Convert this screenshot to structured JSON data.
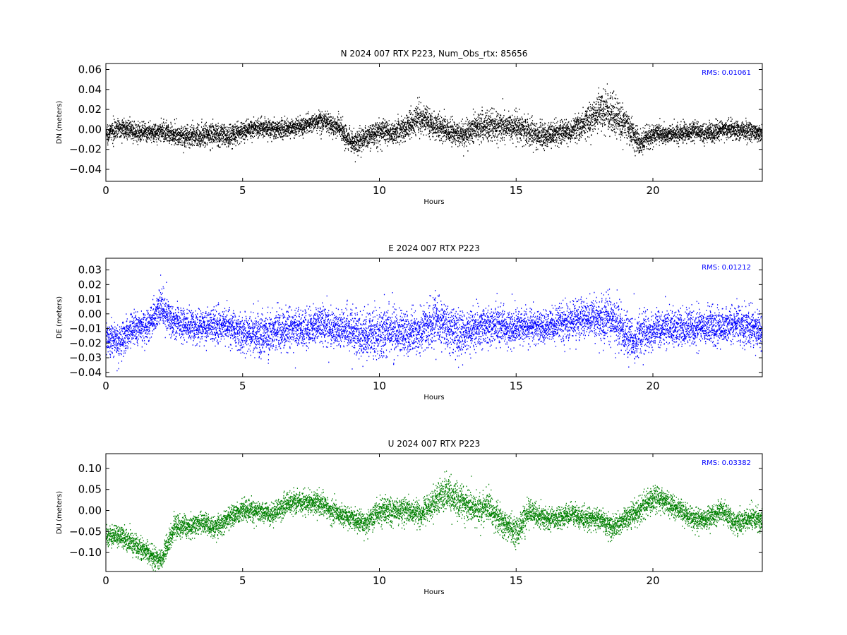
{
  "chart_data": [
    {
      "type": "scatter",
      "title": "N 2024 007 RTX  P223, Num_Obs_rtx: 85656",
      "xlabel": "Hours",
      "ylabel": "DN (meters)",
      "xlim": [
        0,
        24
      ],
      "ylim": [
        -0.052,
        0.066
      ],
      "xticks": [
        0,
        5,
        10,
        15,
        20
      ],
      "yticks": [
        -0.04,
        -0.02,
        0.0,
        0.02,
        0.04,
        0.06
      ],
      "ytick_labels": [
        "−0.04",
        "−0.02",
        "0.00",
        "0.02",
        "0.04",
        "0.06"
      ],
      "rms_label": "RMS:  0.01061",
      "rms_color": "#0000ff",
      "series": [
        {
          "color": "#000000",
          "x": [
            0,
            0.5,
            1,
            1.5,
            2,
            2.5,
            3,
            3.5,
            4,
            4.5,
            5,
            5.5,
            6,
            6.5,
            7,
            7.5,
            8,
            8.5,
            9,
            9.5,
            10,
            10.5,
            11,
            11.5,
            12,
            12.5,
            13,
            13.5,
            14,
            14.5,
            15,
            15.5,
            16,
            16.5,
            17,
            17.5,
            18,
            18.5,
            19,
            19.5,
            20,
            20.5,
            21,
            21.5,
            22,
            22.5,
            23,
            23.5,
            24
          ],
          "mean": [
            -0.005,
            0.002,
            -0.002,
            -0.004,
            -0.002,
            -0.005,
            -0.008,
            -0.006,
            -0.004,
            -0.007,
            -0.002,
            0.002,
            0.001,
            0.0,
            0.002,
            0.006,
            0.008,
            0.002,
            -0.014,
            -0.008,
            -0.002,
            -0.004,
            0.002,
            0.012,
            0.004,
            -0.002,
            -0.006,
            0.002,
            0.004,
            0.003,
            0.004,
            -0.003,
            -0.008,
            -0.004,
            -0.002,
            0.006,
            0.018,
            0.016,
            0.004,
            -0.014,
            -0.004,
            -0.006,
            -0.004,
            -0.002,
            -0.004,
            -0.001,
            -0.001,
            -0.002,
            -0.004
          ],
          "spread": [
            0.009,
            0.009,
            0.009,
            0.009,
            0.009,
            0.01,
            0.011,
            0.012,
            0.012,
            0.011,
            0.01,
            0.009,
            0.009,
            0.009,
            0.009,
            0.01,
            0.011,
            0.011,
            0.012,
            0.012,
            0.011,
            0.011,
            0.013,
            0.015,
            0.013,
            0.012,
            0.013,
            0.014,
            0.015,
            0.015,
            0.014,
            0.013,
            0.013,
            0.012,
            0.012,
            0.014,
            0.018,
            0.018,
            0.016,
            0.013,
            0.01,
            0.009,
            0.009,
            0.009,
            0.009,
            0.009,
            0.009,
            0.009,
            0.009
          ]
        }
      ]
    },
    {
      "type": "scatter",
      "title": "E 2024 007 RTX  P223",
      "xlabel": "Hours",
      "ylabel": "DE (meters)",
      "xlim": [
        0,
        24
      ],
      "ylim": [
        -0.043,
        0.038
      ],
      "xticks": [
        0,
        5,
        10,
        15,
        20
      ],
      "yticks": [
        -0.04,
        -0.03,
        -0.02,
        -0.01,
        0.0,
        0.01,
        0.02,
        0.03
      ],
      "ytick_labels": [
        "−0.04",
        "−0.03",
        "−0.02",
        "−0.01",
        "0.00",
        "0.01",
        "0.02",
        "0.03"
      ],
      "rms_label": "RMS:  0.01212",
      "rms_color": "#0000ff",
      "series": [
        {
          "color": "#0000ff",
          "x": [
            0,
            0.5,
            1,
            1.5,
            2,
            2.5,
            3,
            3.5,
            4,
            4.5,
            5,
            5.5,
            6,
            6.5,
            7,
            7.5,
            8,
            8.5,
            9,
            9.5,
            10,
            10.5,
            11,
            11.5,
            12,
            12.5,
            13,
            13.5,
            14,
            14.5,
            15,
            15.5,
            16,
            16.5,
            17,
            17.5,
            18,
            18.5,
            19,
            19.5,
            20,
            20.5,
            21,
            21.5,
            22,
            22.5,
            23,
            23.5,
            24
          ],
          "mean": [
            -0.016,
            -0.018,
            -0.01,
            -0.008,
            0.004,
            -0.006,
            -0.008,
            -0.009,
            -0.008,
            -0.009,
            -0.012,
            -0.014,
            -0.012,
            -0.01,
            -0.01,
            -0.009,
            -0.009,
            -0.01,
            -0.012,
            -0.014,
            -0.013,
            -0.012,
            -0.014,
            -0.012,
            -0.004,
            -0.01,
            -0.014,
            -0.01,
            -0.008,
            -0.009,
            -0.009,
            -0.008,
            -0.01,
            -0.007,
            -0.005,
            -0.004,
            -0.003,
            -0.004,
            -0.013,
            -0.016,
            -0.012,
            -0.009,
            -0.01,
            -0.01,
            -0.009,
            -0.01,
            -0.006,
            -0.009,
            -0.012
          ],
          "spread": [
            0.012,
            0.012,
            0.011,
            0.011,
            0.012,
            0.011,
            0.011,
            0.011,
            0.011,
            0.012,
            0.013,
            0.015,
            0.014,
            0.013,
            0.012,
            0.012,
            0.012,
            0.012,
            0.014,
            0.016,
            0.016,
            0.015,
            0.015,
            0.015,
            0.016,
            0.015,
            0.015,
            0.014,
            0.013,
            0.013,
            0.012,
            0.011,
            0.011,
            0.012,
            0.012,
            0.013,
            0.014,
            0.015,
            0.016,
            0.015,
            0.013,
            0.012,
            0.012,
            0.012,
            0.012,
            0.012,
            0.012,
            0.012,
            0.012
          ]
        }
      ]
    },
    {
      "type": "scatter",
      "title": "U 2024 007 RTX  P223",
      "xlabel": "Hours",
      "ylabel": "DU (meters)",
      "xlim": [
        0,
        24
      ],
      "ylim": [
        -0.145,
        0.135
      ],
      "xticks": [
        0,
        5,
        10,
        15,
        20
      ],
      "yticks": [
        -0.1,
        -0.05,
        0.0,
        0.05,
        0.1
      ],
      "ytick_labels": [
        "−0.10",
        "−0.05",
        "0.00",
        "0.05",
        "0.10"
      ],
      "rms_label": "RMS:  0.03382",
      "rms_color": "#0000ff",
      "series": [
        {
          "color": "#008000",
          "x": [
            0,
            0.5,
            1,
            1.5,
            2,
            2.5,
            3,
            3.5,
            4,
            4.5,
            5,
            5.5,
            6,
            6.5,
            7,
            7.5,
            8,
            8.5,
            9,
            9.5,
            10,
            10.5,
            11,
            11.5,
            12,
            12.5,
            13,
            13.5,
            14,
            14.5,
            15,
            15.5,
            16,
            16.5,
            17,
            17.5,
            18,
            18.5,
            19,
            19.5,
            20,
            20.5,
            21,
            21.5,
            22,
            22.5,
            23,
            23.5,
            24
          ],
          "mean": [
            -0.06,
            -0.06,
            -0.08,
            -0.1,
            -0.12,
            -0.04,
            -0.04,
            -0.03,
            -0.04,
            -0.02,
            0.0,
            0.0,
            -0.01,
            0.01,
            0.02,
            0.02,
            0.01,
            -0.01,
            -0.02,
            -0.03,
            0.0,
            0.0,
            0.0,
            -0.01,
            0.02,
            0.04,
            0.02,
            0.0,
            0.01,
            -0.03,
            -0.05,
            0.0,
            -0.02,
            -0.02,
            -0.01,
            -0.02,
            -0.02,
            -0.04,
            -0.02,
            0.0,
            0.03,
            0.02,
            0.0,
            -0.02,
            -0.02,
            0.0,
            -0.03,
            -0.02,
            -0.02
          ],
          "spread": [
            0.025,
            0.025,
            0.025,
            0.025,
            0.025,
            0.03,
            0.025,
            0.025,
            0.025,
            0.025,
            0.025,
            0.025,
            0.025,
            0.025,
            0.025,
            0.025,
            0.025,
            0.025,
            0.025,
            0.025,
            0.03,
            0.03,
            0.03,
            0.03,
            0.035,
            0.04,
            0.04,
            0.035,
            0.035,
            0.035,
            0.035,
            0.03,
            0.025,
            0.025,
            0.025,
            0.025,
            0.025,
            0.025,
            0.025,
            0.03,
            0.03,
            0.03,
            0.025,
            0.025,
            0.025,
            0.025,
            0.025,
            0.025,
            0.025
          ]
        }
      ]
    }
  ]
}
